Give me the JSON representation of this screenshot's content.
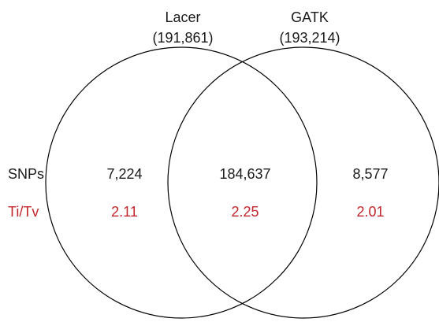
{
  "sets": {
    "left": {
      "name": "Lacer",
      "total": "(191,861)"
    },
    "right": {
      "name": "GATK",
      "total": "(193,214)"
    }
  },
  "rows": {
    "snps": {
      "label": "SNPs",
      "left_only": "7,224",
      "both": "184,637",
      "right_only": "8,577"
    },
    "titv": {
      "label": "Ti/Tv",
      "left_only": "2.11",
      "both": "2.25",
      "right_only": "2.01"
    }
  },
  "colors": {
    "text": "#1a1a1a",
    "titv": "#c1272d",
    "outline": "#000000"
  }
}
